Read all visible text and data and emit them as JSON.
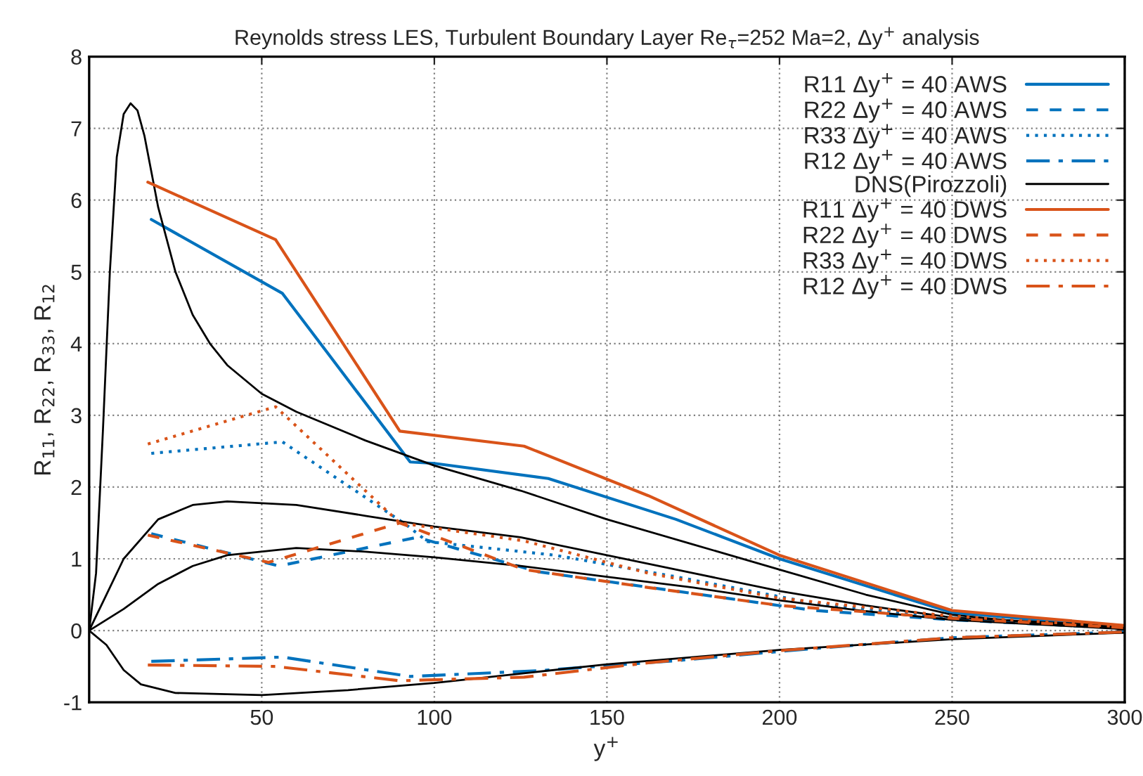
{
  "chart_data": {
    "type": "line",
    "title": "Reynolds stress LES, Turbulent Boundary Layer Re$_{τ}$=252 Ma=2, Δy$^{+}$ analysis",
    "xlabel": "y$^{+}$",
    "ylabel": "R$_{11}$, R$_{22}$, R$_{33}$, R$_{12}$",
    "xlim": [
      0,
      300
    ],
    "xticks": [
      50,
      100,
      150,
      200,
      250,
      300
    ],
    "ylim": [
      -1,
      8
    ],
    "yticks": [
      -1,
      0,
      1,
      2,
      3,
      4,
      5,
      6,
      7,
      8
    ],
    "grid": true,
    "legend": "top right",
    "series": [
      {
        "name": "R11 Δy$^{+}$ = 40 AWS",
        "color": "#0072bd",
        "line_style": "solid",
        "x": [
          18,
          56,
          93,
          100,
          133,
          170,
          200,
          250,
          300
        ],
        "values": [
          5.73,
          4.7,
          2.35,
          2.33,
          2.12,
          1.55,
          1.0,
          0.25,
          0.05
        ]
      },
      {
        "name": "R22 Δy$^{+}$ = 40 AWS",
        "color": "#0072bd",
        "line_style": "dashed",
        "x": [
          18,
          55,
          95,
          130,
          170,
          210,
          250,
          300
        ],
        "values": [
          1.35,
          0.9,
          1.3,
          0.82,
          0.55,
          0.28,
          0.15,
          0.03
        ]
      },
      {
        "name": "R33 Δy$^{+}$ = 40 AWS",
        "color": "#0072bd",
        "line_style": "dotted",
        "x": [
          18,
          56,
          92,
          98,
          135,
          170,
          210,
          250,
          300
        ],
        "values": [
          2.47,
          2.63,
          1.47,
          1.24,
          1.05,
          0.75,
          0.38,
          0.18,
          0.04
        ]
      },
      {
        "name": "R12 Δy$^{+}$ = 40 AWS",
        "color": "#0072bd",
        "line_style": "dashdot",
        "x": [
          18,
          56,
          93,
          130,
          170,
          210,
          250,
          300
        ],
        "values": [
          -0.43,
          -0.37,
          -0.64,
          -0.56,
          -0.42,
          -0.25,
          -0.1,
          -0.02
        ]
      },
      {
        "name": "DNS(Pirozzoli)",
        "color": "#000000",
        "line_style": "solid",
        "x": [
          0,
          2,
          4,
          6,
          8,
          10,
          12,
          14,
          16,
          18,
          20,
          25,
          30,
          35,
          40,
          50,
          60,
          80,
          100,
          125,
          150,
          175,
          200,
          225,
          250,
          275,
          300
        ],
        "values": [
          0,
          0.8,
          2.8,
          5.0,
          6.6,
          7.2,
          7.35,
          7.25,
          6.9,
          6.4,
          5.9,
          5.0,
          4.4,
          4.0,
          3.7,
          3.3,
          3.05,
          2.65,
          2.3,
          1.95,
          1.55,
          1.2,
          0.85,
          0.5,
          0.22,
          0.1,
          0.04
        ]
      },
      {
        "color": "#000000",
        "line_style": "solid",
        "x": [
          0,
          5,
          10,
          20,
          30,
          40,
          60,
          80,
          100,
          125,
          150,
          175,
          200,
          225,
          250,
          300
        ],
        "values": [
          0,
          0.5,
          1.0,
          1.55,
          1.75,
          1.8,
          1.75,
          1.6,
          1.45,
          1.3,
          1.05,
          0.8,
          0.55,
          0.35,
          0.18,
          0.06
        ]
      },
      {
        "color": "#000000",
        "line_style": "solid",
        "x": [
          0,
          10,
          20,
          30,
          40,
          60,
          80,
          100,
          125,
          150,
          175,
          200,
          225,
          250,
          300
        ],
        "values": [
          0,
          0.3,
          0.65,
          0.9,
          1.05,
          1.15,
          1.1,
          1.02,
          0.9,
          0.75,
          0.6,
          0.42,
          0.27,
          0.15,
          0.02
        ]
      },
      {
        "color": "#000000",
        "line_style": "solid",
        "x": [
          0,
          5,
          10,
          15,
          25,
          50,
          75,
          100,
          125,
          150,
          175,
          200,
          250,
          300
        ],
        "values": [
          0,
          -0.2,
          -0.55,
          -0.75,
          -0.87,
          -0.9,
          -0.83,
          -0.73,
          -0.6,
          -0.47,
          -0.37,
          -0.27,
          -0.12,
          -0.03
        ]
      },
      {
        "name": "R11 Δy$^{+}$ = 40 DWS",
        "color": "#d95319",
        "line_style": "solid",
        "x": [
          17,
          54,
          90,
          126,
          162,
          200,
          250,
          300
        ],
        "values": [
          6.25,
          5.45,
          2.78,
          2.57,
          1.88,
          1.05,
          0.28,
          0.07
        ]
      },
      {
        "name": "R22 Δy$^{+}$ = 40 DWS",
        "color": "#d95319",
        "line_style": "dashed",
        "x": [
          17,
          52,
          90,
          126,
          162,
          200,
          250,
          300
        ],
        "values": [
          1.33,
          0.95,
          1.5,
          0.85,
          0.6,
          0.35,
          0.17,
          0.04
        ]
      },
      {
        "name": "R33 Δy$^{+}$ = 40 DWS",
        "color": "#d95319",
        "line_style": "dotted",
        "x": [
          17,
          54,
          90,
          126,
          162,
          200,
          250,
          300
        ],
        "values": [
          2.6,
          3.12,
          1.5,
          1.25,
          0.8,
          0.45,
          0.2,
          0.05
        ]
      },
      {
        "name": "R12 Δy$^{+}$ = 40 DWS",
        "color": "#d95319",
        "line_style": "dashdot",
        "x": [
          17,
          54,
          90,
          126,
          162,
          200,
          250,
          300
        ],
        "values": [
          -0.48,
          -0.5,
          -0.7,
          -0.65,
          -0.45,
          -0.28,
          -0.1,
          -0.02
        ]
      }
    ]
  }
}
